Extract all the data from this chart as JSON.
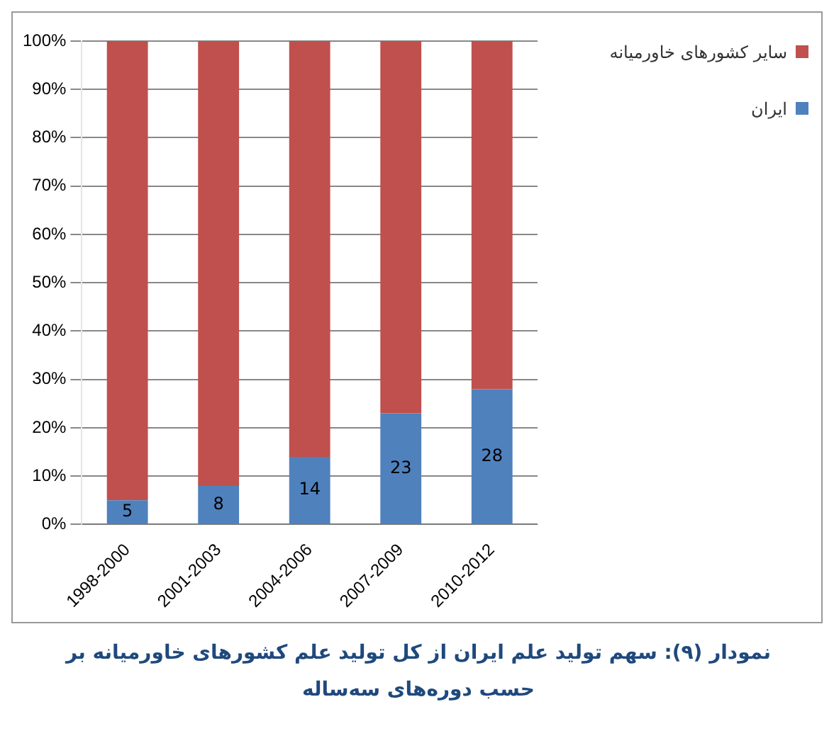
{
  "chart_data": {
    "type": "bar",
    "stacked": true,
    "categories": [
      "1998-2000",
      "2001-2003",
      "2004-2006",
      "2007-2009",
      "2010-2012"
    ],
    "series": [
      {
        "name": "ایران",
        "color": "#4f81bd",
        "values": [
          5,
          8,
          14,
          23,
          28
        ],
        "value_labels": [
          "5",
          "8",
          "14",
          "23",
          "28"
        ]
      },
      {
        "name": "سایر کشورهای خاورمیانه",
        "color": "#c0504d",
        "values": [
          95,
          92,
          86,
          77,
          72
        ]
      }
    ],
    "ylim": [
      0,
      100
    ],
    "yticks": [
      {
        "value": 0,
        "label": "0%"
      },
      {
        "value": 10,
        "label": "10%"
      },
      {
        "value": 20,
        "label": "20%"
      },
      {
        "value": 30,
        "label": "30%"
      },
      {
        "value": 40,
        "label": "40%"
      },
      {
        "value": 50,
        "label": "50%"
      },
      {
        "value": 60,
        "label": "60%"
      },
      {
        "value": 70,
        "label": "70%"
      },
      {
        "value": 80,
        "label": "80%"
      },
      {
        "value": 90,
        "label": "90%"
      },
      {
        "value": 100,
        "label": "100%"
      }
    ],
    "grid": "y",
    "legend": "right",
    "annotations": [
      "نمودار (۹): سهم تولید علم ایران از کل تولید علم کشورهای خاورمیانه بر حسب دوره‌های سه‌ساله"
    ]
  }
}
